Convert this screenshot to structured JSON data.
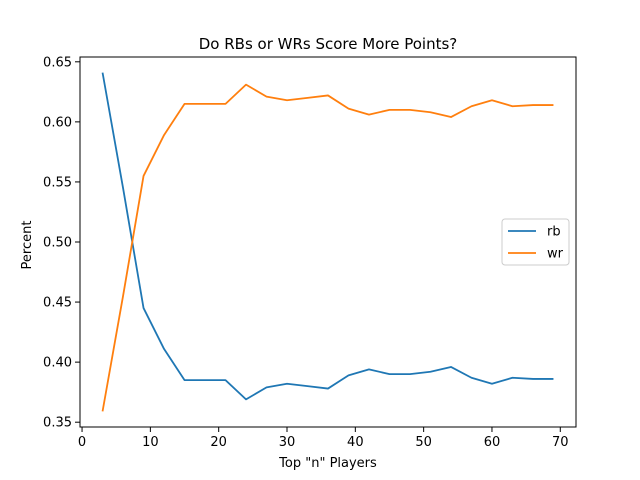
{
  "chart_data": {
    "type": "line",
    "title": "Do RBs or WRs Score More Points?",
    "xlabel": "Top \"n\" Players",
    "ylabel": "Percent",
    "xlim": [
      -0.3,
      72.3
    ],
    "ylim": [
      0.346,
      0.654
    ],
    "xticks": [
      0,
      10,
      20,
      30,
      40,
      50,
      60,
      70
    ],
    "yticks": [
      0.35,
      0.4,
      0.45,
      0.5,
      0.55,
      0.6,
      0.65
    ],
    "legend_position": "center-right",
    "grid": false,
    "x": [
      3,
      6,
      9,
      12,
      15,
      18,
      21,
      24,
      27,
      30,
      33,
      36,
      39,
      42,
      45,
      48,
      51,
      54,
      57,
      60,
      63,
      66,
      69
    ],
    "series": [
      {
        "name": "rb",
        "color": "#1f77b4",
        "values": [
          0.641,
          0.545,
          0.445,
          0.411,
          0.385,
          0.385,
          0.385,
          0.369,
          0.379,
          0.382,
          0.38,
          0.378,
          0.389,
          0.394,
          0.39,
          0.39,
          0.392,
          0.396,
          0.387,
          0.382,
          0.387,
          0.386,
          0.386
        ]
      },
      {
        "name": "wr",
        "color": "#ff7f0e",
        "values": [
          0.359,
          0.455,
          0.555,
          0.589,
          0.615,
          0.615,
          0.615,
          0.631,
          0.621,
          0.618,
          0.62,
          0.622,
          0.611,
          0.606,
          0.61,
          0.61,
          0.608,
          0.604,
          0.613,
          0.618,
          0.613,
          0.614,
          0.614
        ]
      }
    ]
  }
}
